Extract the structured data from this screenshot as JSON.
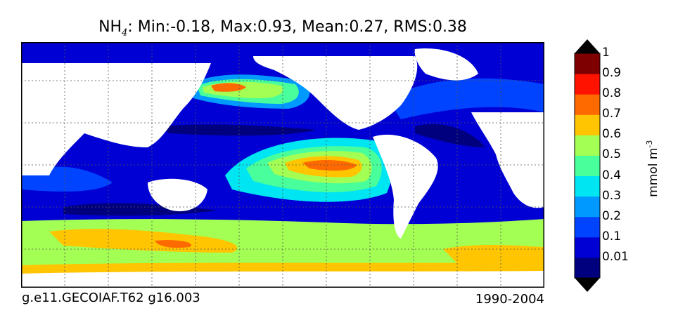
{
  "title": {
    "variable": "NH",
    "subscript": "4",
    "stats": ": Min:-0.18, Max:0.93, Mean:0.27, RMS:0.38"
  },
  "footer": {
    "case_name": "g.e11.GECOIAF.T62 g16.003",
    "period": "1990-2004"
  },
  "colorbar": {
    "label": "mmol m",
    "label_exponent": "-3",
    "ticks": [
      "0.01",
      "0.1",
      "0.2",
      "0.3",
      "0.4",
      "0.5",
      "0.6",
      "0.7",
      "0.8",
      "0.9",
      "1"
    ],
    "colors": [
      "#00007f",
      "#0000d4",
      "#0044ff",
      "#0099ff",
      "#00e5f2",
      "#48ff9c",
      "#a3ff53",
      "#ffc500",
      "#ff6a00",
      "#ff1300",
      "#7f0000"
    ],
    "under_color": "#000000",
    "over_color": "#000000"
  }
}
